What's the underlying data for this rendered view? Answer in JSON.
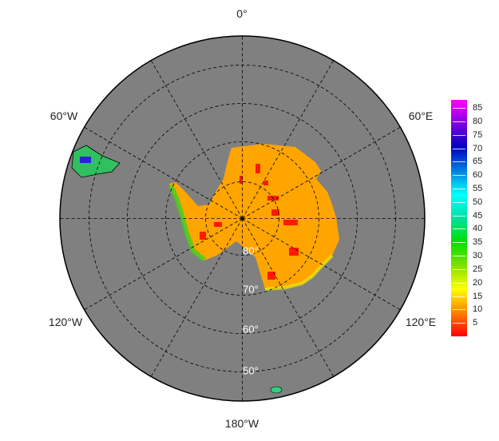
{
  "map": {
    "projection": "south polar stereographic",
    "ocean_color": "#808080",
    "land_base_color": "#ffa500",
    "longitude_labels": {
      "top": "0°",
      "upper_right": "60°E",
      "lower_right": "120°E",
      "bottom": "180°W",
      "lower_left": "120°W",
      "upper_left": "60°W"
    },
    "latitude_labels": [
      "80°",
      "70°",
      "60°",
      "50°"
    ]
  },
  "colorbar": {
    "ticks": [
      "85",
      "80",
      "75",
      "70",
      "65",
      "60",
      "55",
      "50",
      "45",
      "40",
      "35",
      "30",
      "25",
      "20",
      "15",
      "10",
      "5"
    ],
    "colors": [
      "#ff0000",
      "#ff8000",
      "#ffff00",
      "#80e000",
      "#00e000",
      "#00e0a0",
      "#00ffff",
      "#0080e0",
      "#0000c0",
      "#8000e0",
      "#ff00ff"
    ]
  }
}
